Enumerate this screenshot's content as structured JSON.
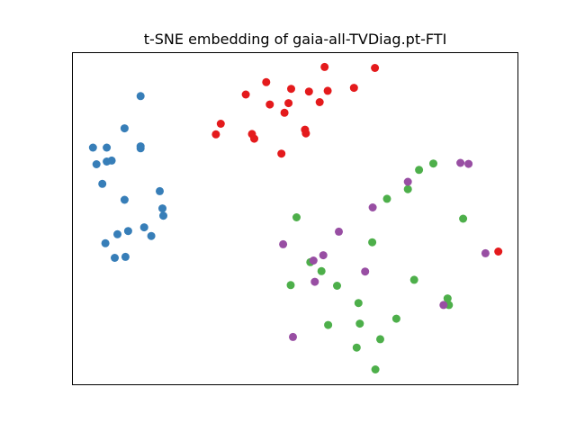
{
  "chart_data": {
    "type": "scatter",
    "title": "t-SNE embedding of gaia-all-TVDiag.pt-FTI",
    "xlabel": "",
    "ylabel": "",
    "xlim": [
      0,
      1
    ],
    "ylim": [
      0,
      1
    ],
    "grid": false,
    "ticks": false,
    "legend": false,
    "colors": {
      "blue": "#377eb8",
      "red": "#e41a1c",
      "green": "#4daf4a",
      "purple": "#984ea3"
    },
    "series": [
      {
        "color": "blue",
        "x": [
          0.153,
          0.117,
          0.077,
          0.046,
          0.077,
          0.054,
          0.088,
          0.153,
          0.153,
          0.067,
          0.117,
          0.196,
          0.202,
          0.204,
          0.161,
          0.125,
          0.177,
          0.101,
          0.074,
          0.119,
          0.095
        ],
        "y": [
          0.869,
          0.772,
          0.714,
          0.714,
          0.672,
          0.664,
          0.675,
          0.718,
          0.712,
          0.605,
          0.557,
          0.583,
          0.531,
          0.509,
          0.474,
          0.463,
          0.448,
          0.453,
          0.426,
          0.385,
          0.382
        ]
      },
      {
        "color": "red",
        "x": [
          0.566,
          0.679,
          0.389,
          0.435,
          0.491,
          0.531,
          0.573,
          0.632,
          0.443,
          0.485,
          0.555,
          0.476,
          0.333,
          0.322,
          0.403,
          0.522,
          0.408,
          0.524,
          0.469,
          0.956
        ],
        "y": [
          0.957,
          0.954,
          0.874,
          0.911,
          0.891,
          0.883,
          0.885,
          0.894,
          0.844,
          0.848,
          0.851,
          0.819,
          0.786,
          0.754,
          0.755,
          0.768,
          0.741,
          0.757,
          0.696,
          0.401
        ]
      },
      {
        "color": "green",
        "x": [
          0.81,
          0.778,
          0.753,
          0.706,
          0.503,
          0.877,
          0.673,
          0.534,
          0.559,
          0.49,
          0.594,
          0.767,
          0.842,
          0.845,
          0.642,
          0.645,
          0.727,
          0.574,
          0.691,
          0.638,
          0.68
        ],
        "y": [
          0.666,
          0.647,
          0.589,
          0.56,
          0.504,
          0.5,
          0.429,
          0.369,
          0.342,
          0.3,
          0.298,
          0.316,
          0.26,
          0.24,
          0.246,
          0.184,
          0.199,
          0.18,
          0.137,
          0.112,
          0.046
        ]
      },
      {
        "color": "purple",
        "x": [
          0.871,
          0.889,
          0.753,
          0.674,
          0.598,
          0.473,
          0.563,
          0.541,
          0.927,
          0.657,
          0.544,
          0.833,
          0.495
        ],
        "y": [
          0.668,
          0.665,
          0.611,
          0.534,
          0.461,
          0.423,
          0.39,
          0.374,
          0.396,
          0.341,
          0.31,
          0.24,
          0.144
        ]
      }
    ]
  }
}
